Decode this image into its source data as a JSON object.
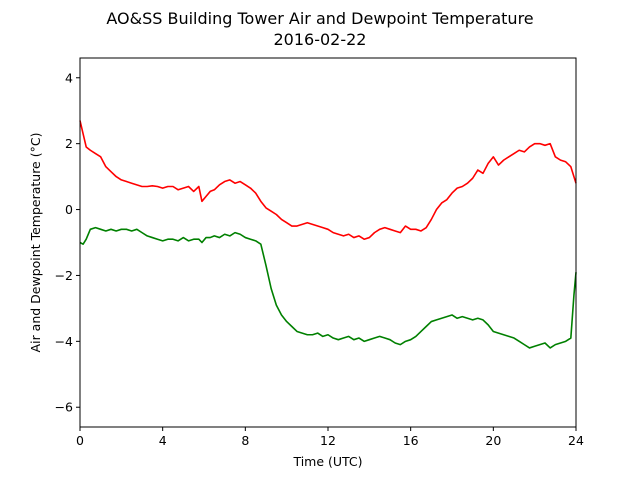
{
  "chart_data": {
    "type": "line",
    "title": "AO&SS Building Tower Air and Dewpoint Temperature",
    "subtitle": "2016-02-22",
    "xlabel": "Time (UTC)",
    "ylabel": "Air and Dewpoint Temperature (°C)",
    "xlim": [
      0,
      24
    ],
    "ylim": [
      -6.6,
      4.6
    ],
    "xticks": [
      0,
      4,
      8,
      12,
      16,
      20,
      24
    ],
    "xtick_labels": [
      "0",
      "4",
      "8",
      "12",
      "16",
      "20",
      "24"
    ],
    "yticks": [
      4,
      2,
      0,
      -2,
      -4,
      -6
    ],
    "ytick_labels": [
      "4",
      "2",
      "0",
      "−2",
      "−4",
      "−6"
    ],
    "grid": false,
    "series": [
      {
        "color": "#ff0000",
        "x": [
          0,
          0.15,
          0.3,
          0.5,
          0.75,
          1,
          1.25,
          1.5,
          1.75,
          2,
          2.25,
          2.5,
          2.75,
          3,
          3.25,
          3.5,
          3.75,
          4,
          4.25,
          4.5,
          4.75,
          5,
          5.25,
          5.5,
          5.75,
          5.9,
          6.1,
          6.3,
          6.5,
          6.75,
          7,
          7.25,
          7.5,
          7.75,
          8,
          8.25,
          8.5,
          8.75,
          9,
          9.25,
          9.5,
          9.75,
          10,
          10.25,
          10.5,
          10.75,
          11,
          11.25,
          11.5,
          11.75,
          12,
          12.25,
          12.5,
          12.75,
          13,
          13.25,
          13.5,
          13.75,
          14,
          14.25,
          14.5,
          14.75,
          15,
          15.25,
          15.5,
          15.75,
          16,
          16.25,
          16.5,
          16.75,
          17,
          17.25,
          17.5,
          17.75,
          18,
          18.25,
          18.5,
          18.75,
          19,
          19.25,
          19.5,
          19.75,
          20,
          20.25,
          20.5,
          20.75,
          21,
          21.25,
          21.5,
          21.75,
          22,
          22.25,
          22.5,
          22.75,
          23,
          23.25,
          23.5,
          23.75,
          24
        ],
        "values": [
          2.7,
          2.3,
          1.9,
          1.8,
          1.7,
          1.6,
          1.3,
          1.15,
          1.0,
          0.9,
          0.85,
          0.8,
          0.75,
          0.7,
          0.7,
          0.72,
          0.7,
          0.65,
          0.7,
          0.7,
          0.6,
          0.65,
          0.7,
          0.55,
          0.7,
          0.25,
          0.4,
          0.55,
          0.6,
          0.75,
          0.85,
          0.9,
          0.8,
          0.85,
          0.75,
          0.65,
          0.5,
          0.25,
          0.05,
          -0.05,
          -0.15,
          -0.3,
          -0.4,
          -0.5,
          -0.5,
          -0.45,
          -0.4,
          -0.45,
          -0.5,
          -0.55,
          -0.6,
          -0.7,
          -0.75,
          -0.8,
          -0.75,
          -0.85,
          -0.8,
          -0.9,
          -0.85,
          -0.7,
          -0.6,
          -0.55,
          -0.6,
          -0.65,
          -0.7,
          -0.5,
          -0.6,
          -0.6,
          -0.65,
          -0.55,
          -0.3,
          0.0,
          0.2,
          0.3,
          0.5,
          0.65,
          0.7,
          0.8,
          0.95,
          1.2,
          1.1,
          1.4,
          1.6,
          1.35,
          1.5,
          1.6,
          1.7,
          1.8,
          1.75,
          1.9,
          2.0,
          2.0,
          1.95,
          2.0,
          1.6,
          1.5,
          1.45,
          1.3,
          0.8
        ]
      },
      {
        "color": "#008000",
        "x": [
          0,
          0.15,
          0.3,
          0.5,
          0.75,
          1,
          1.25,
          1.5,
          1.75,
          2,
          2.25,
          2.5,
          2.75,
          3,
          3.25,
          3.5,
          3.75,
          4,
          4.25,
          4.5,
          4.75,
          5,
          5.25,
          5.5,
          5.75,
          5.9,
          6.1,
          6.3,
          6.5,
          6.75,
          7,
          7.25,
          7.5,
          7.75,
          8,
          8.25,
          8.5,
          8.75,
          9,
          9.25,
          9.5,
          9.75,
          10,
          10.25,
          10.5,
          10.75,
          11,
          11.25,
          11.5,
          11.75,
          12,
          12.25,
          12.5,
          12.75,
          13,
          13.25,
          13.5,
          13.75,
          14,
          14.25,
          14.5,
          14.75,
          15,
          15.25,
          15.5,
          15.75,
          16,
          16.25,
          16.5,
          16.75,
          17,
          17.25,
          17.5,
          17.75,
          18,
          18.25,
          18.5,
          18.75,
          19,
          19.25,
          19.5,
          19.75,
          20,
          20.25,
          20.5,
          20.75,
          21,
          21.25,
          21.5,
          21.75,
          22,
          22.25,
          22.5,
          22.75,
          23,
          23.25,
          23.5,
          23.75,
          23.9,
          24
        ],
        "values": [
          -1.0,
          -1.05,
          -0.9,
          -0.6,
          -0.55,
          -0.6,
          -0.65,
          -0.6,
          -0.65,
          -0.6,
          -0.6,
          -0.65,
          -0.6,
          -0.7,
          -0.8,
          -0.85,
          -0.9,
          -0.95,
          -0.9,
          -0.9,
          -0.95,
          -0.85,
          -0.95,
          -0.9,
          -0.9,
          -1.0,
          -0.85,
          -0.85,
          -0.8,
          -0.85,
          -0.75,
          -0.8,
          -0.7,
          -0.75,
          -0.85,
          -0.9,
          -0.95,
          -1.05,
          -1.7,
          -2.4,
          -2.9,
          -3.2,
          -3.4,
          -3.55,
          -3.7,
          -3.75,
          -3.8,
          -3.8,
          -3.75,
          -3.85,
          -3.8,
          -3.9,
          -3.95,
          -3.9,
          -3.85,
          -3.95,
          -3.9,
          -4.0,
          -3.95,
          -3.9,
          -3.85,
          -3.9,
          -3.95,
          -4.05,
          -4.1,
          -4.0,
          -3.95,
          -3.85,
          -3.7,
          -3.55,
          -3.4,
          -3.35,
          -3.3,
          -3.25,
          -3.2,
          -3.3,
          -3.25,
          -3.3,
          -3.35,
          -3.3,
          -3.35,
          -3.5,
          -3.7,
          -3.75,
          -3.8,
          -3.85,
          -3.9,
          -4.0,
          -4.1,
          -4.2,
          -4.15,
          -4.1,
          -4.05,
          -4.2,
          -4.1,
          -4.05,
          -4.0,
          -3.9,
          -2.6,
          -1.9
        ]
      }
    ]
  }
}
